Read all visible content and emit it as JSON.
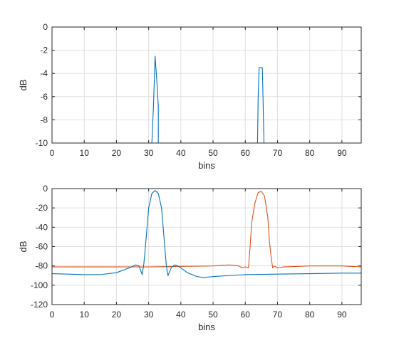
{
  "chart_data": [
    {
      "type": "line",
      "title": "",
      "xlabel": "bins",
      "ylabel": "dB",
      "xlim": [
        0,
        96
      ],
      "ylim": [
        -10,
        0
      ],
      "xticks": [
        0,
        10,
        20,
        30,
        40,
        50,
        60,
        70,
        80,
        90
      ],
      "yticks": [
        0,
        -2,
        -4,
        -6,
        -8,
        -10
      ],
      "grid": true,
      "series": [
        {
          "color": "#0072BD",
          "x": [
            31,
            31.5,
            32,
            32.5,
            33,
            33
          ],
          "y": [
            -10,
            -6.8,
            -2.5,
            -4.5,
            -6.8,
            -10
          ]
        },
        {
          "color": "#0072BD",
          "x": [
            63.8,
            64,
            64.3,
            65.3,
            65.5,
            65.8
          ],
          "y": [
            -10,
            -6,
            -3.5,
            -3.5,
            -6,
            -10
          ]
        }
      ]
    },
    {
      "type": "line",
      "title": "",
      "xlabel": "bins",
      "ylabel": "dB",
      "xlim": [
        0,
        96
      ],
      "ylim": [
        -120,
        0
      ],
      "xticks": [
        0,
        10,
        20,
        30,
        40,
        50,
        60,
        70,
        80,
        90
      ],
      "yticks": [
        0,
        -20,
        -40,
        -60,
        -80,
        -100,
        -120
      ],
      "grid": true,
      "series": [
        {
          "color": "#D95319",
          "x": [
            0,
            10,
            20,
            30,
            40,
            50,
            55,
            58,
            59,
            60,
            61,
            61.5,
            62,
            63,
            64,
            65,
            66,
            67,
            67.5,
            68,
            68.5,
            69,
            70,
            72,
            80,
            90,
            96
          ],
          "y": [
            -81,
            -81,
            -81,
            -81,
            -80.5,
            -80,
            -79,
            -80,
            -82,
            -81,
            -82,
            -60,
            -35,
            -15,
            -4,
            -3,
            -8,
            -30,
            -55,
            -70,
            -82,
            -80,
            -82,
            -81,
            -80,
            -80,
            -81
          ]
        },
        {
          "color": "#0072BD",
          "x": [
            0,
            5,
            10,
            15,
            20,
            24,
            26,
            27,
            28,
            28.5,
            29,
            30,
            31,
            32,
            33,
            34,
            35,
            35.5,
            36,
            37,
            38,
            39,
            40,
            42,
            45,
            47,
            50,
            55,
            60,
            70,
            80,
            90,
            96
          ],
          "y": [
            -88,
            -88.5,
            -89,
            -89,
            -87,
            -82,
            -79,
            -80,
            -89,
            -78,
            -60,
            -20,
            -5,
            -2,
            -5,
            -20,
            -60,
            -80,
            -90,
            -82,
            -79,
            -80,
            -82,
            -87,
            -91,
            -92,
            -91,
            -90,
            -89,
            -88.5,
            -88,
            -87.5,
            -87.5
          ]
        }
      ]
    }
  ]
}
